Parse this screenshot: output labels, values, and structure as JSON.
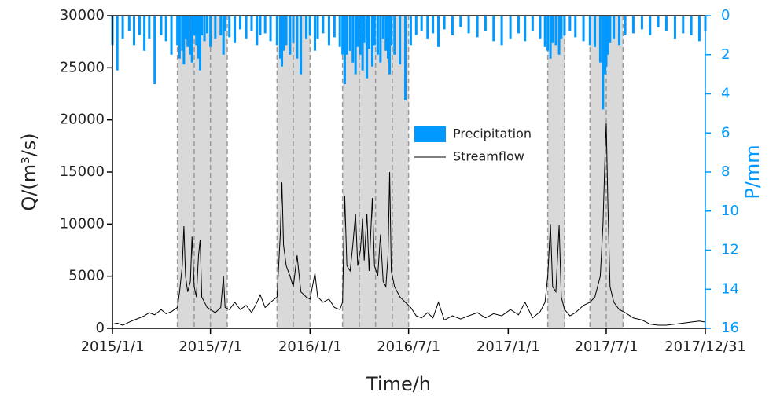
{
  "chart_data": {
    "type": "combo",
    "x_label": "Time/h",
    "y_label": "Q/(m³/s)",
    "y2_label": "P/mm",
    "x": [
      "2015/1/1",
      "2015/1/10",
      "2015/1/20",
      "2015/2/1",
      "2015/2/10",
      "2015/2/20",
      "2015/3/1",
      "2015/3/10",
      "2015/3/20",
      "2015/4/1",
      "2015/4/10",
      "2015/4/20",
      "2015/5/1",
      "2015/5/5",
      "2015/5/10",
      "2015/5/13",
      "2015/5/16",
      "2015/5/20",
      "2015/5/25",
      "2015/5/28",
      "2015/6/1",
      "2015/6/5",
      "2015/6/9",
      "2015/6/12",
      "2015/6/15",
      "2015/6/20",
      "2015/6/25",
      "2015/7/1",
      "2015/7/10",
      "2015/7/20",
      "2015/7/25",
      "2015/7/28",
      "2015/8/5",
      "2015/8/15",
      "2015/8/25",
      "2015/9/5",
      "2015/9/15",
      "2015/9/25",
      "2015/10/1",
      "2015/10/10",
      "2015/10/20",
      "2015/11/1",
      "2015/11/7",
      "2015/11/10",
      "2015/11/13",
      "2015/11/18",
      "2015/11/25",
      "2015/12/1",
      "2015/12/8",
      "2015/12/15",
      "2015/12/25",
      "2016/1/1",
      "2016/1/10",
      "2016/1/15",
      "2016/1/25",
      "2016/2/5",
      "2016/2/15",
      "2016/2/25",
      "2016/3/1",
      "2016/3/5",
      "2016/3/9",
      "2016/3/15",
      "2016/3/20",
      "2016/3/25",
      "2016/3/29",
      "2016/4/3",
      "2016/4/7",
      "2016/4/10",
      "2016/4/15",
      "2016/4/19",
      "2016/4/25",
      "2016/4/29",
      "2016/5/5",
      "2016/5/10",
      "2016/5/15",
      "2016/5/20",
      "2016/5/24",
      "2016/5/27",
      "2016/5/30",
      "2016/6/5",
      "2016/6/15",
      "2016/6/25",
      "2016/7/5",
      "2016/7/15",
      "2016/7/25",
      "2016/8/5",
      "2016/8/15",
      "2016/8/25",
      "2016/9/5",
      "2016/9/20",
      "2016/10/5",
      "2016/10/20",
      "2016/11/5",
      "2016/11/20",
      "2016/12/5",
      "2016/12/20",
      "2017/1/5",
      "2017/1/20",
      "2017/2/1",
      "2017/2/15",
      "2017/3/1",
      "2017/3/10",
      "2017/3/15",
      "2017/3/20",
      "2017/3/24",
      "2017/3/30",
      "2017/4/5",
      "2017/4/9",
      "2017/4/15",
      "2017/4/25",
      "2017/5/5",
      "2017/5/20",
      "2017/6/1",
      "2017/6/10",
      "2017/6/20",
      "2017/6/25",
      "2017/6/29",
      "2017/7/1",
      "2017/7/4",
      "2017/7/8",
      "2017/7/15",
      "2017/7/25",
      "2017/8/5",
      "2017/8/20",
      "2017/9/5",
      "2017/9/20",
      "2017/10/5",
      "2017/10/20",
      "2017/11/5",
      "2017/11/20",
      "2017/12/5",
      "2017/12/20",
      "2017/12/31"
    ],
    "series": [
      {
        "name": "Precipitation",
        "type": "bar",
        "axis": "y2",
        "color": "#0099ff",
        "values": [
          1.5,
          2.8,
          1.2,
          0.8,
          1.5,
          1.0,
          1.8,
          1.2,
          3.5,
          1.0,
          1.3,
          2.0,
          1.5,
          2.2,
          1.8,
          2.5,
          1.2,
          1.6,
          2.0,
          2.4,
          1.0,
          1.5,
          2.2,
          2.8,
          1.0,
          1.3,
          0.9,
          1.6,
          1.2,
          1.0,
          2.0,
          0.8,
          1.1,
          1.4,
          0.7,
          1.2,
          0.8,
          1.5,
          1.0,
          0.9,
          1.3,
          1.5,
          2.2,
          2.6,
          1.8,
          1.5,
          2.0,
          1.4,
          2.2,
          3.0,
          1.2,
          1.0,
          1.8,
          1.2,
          0.9,
          1.5,
          1.1,
          1.6,
          2.0,
          3.5,
          2.0,
          1.8,
          2.4,
          3.0,
          1.6,
          2.0,
          2.8,
          1.4,
          3.2,
          1.7,
          2.6,
          1.5,
          2.0,
          2.4,
          1.2,
          1.8,
          2.2,
          3.0,
          1.5,
          2.0,
          2.5,
          4.3,
          1.5,
          1.0,
          0.8,
          1.2,
          0.9,
          1.6,
          0.7,
          1.0,
          0.6,
          0.9,
          1.1,
          0.8,
          1.3,
          1.5,
          1.2,
          0.9,
          1.3,
          0.8,
          1.2,
          1.6,
          1.8,
          2.2,
          1.4,
          1.5,
          2.0,
          1.2,
          1.0,
          0.8,
          1.1,
          1.3,
          1.5,
          1.6,
          2.4,
          4.8,
          3.0,
          2.6,
          2.0,
          1.4,
          1.2,
          1.5,
          1.0,
          0.9,
          0.7,
          1.0,
          0.6,
          0.8,
          1.2,
          0.9,
          1.0,
          1.3,
          0.8
        ]
      },
      {
        "name": "Streamflow",
        "type": "line",
        "color": "#000000",
        "values": [
          400,
          500,
          300,
          600,
          800,
          1000,
          1200,
          1500,
          1300,
          1800,
          1400,
          1600,
          2000,
          3500,
          6000,
          9800,
          5000,
          3500,
          4500,
          8800,
          4000,
          3000,
          7000,
          8500,
          3000,
          2500,
          2000,
          1800,
          1500,
          2000,
          5000,
          2000,
          1800,
          2500,
          1800,
          2200,
          1500,
          2500,
          3200,
          2000,
          2500,
          3000,
          9000,
          14000,
          8000,
          6000,
          5000,
          4000,
          7000,
          3500,
          3000,
          2800,
          5300,
          3000,
          2500,
          2800,
          2000,
          1800,
          2500,
          12700,
          6000,
          5500,
          8000,
          11000,
          6000,
          7500,
          10500,
          6500,
          11000,
          5500,
          12500,
          6000,
          5000,
          9000,
          4500,
          4000,
          7000,
          15000,
          5500,
          4000,
          3000,
          2500,
          2000,
          1200,
          1000,
          1500,
          1000,
          2500,
          800,
          1200,
          900,
          1200,
          1500,
          1000,
          1400,
          1200,
          1800,
          1300,
          2500,
          1000,
          1600,
          2500,
          5000,
          10000,
          4000,
          3500,
          9900,
          3000,
          1800,
          1200,
          1500,
          2200,
          2500,
          3000,
          5000,
          10000,
          17000,
          19700,
          12000,
          4000,
          2500,
          1800,
          1500,
          1000,
          800,
          400,
          300,
          300,
          400,
          500,
          600,
          700,
          600
        ]
      }
    ],
    "xlim": [
      "2015/1/1",
      "2017/12/31"
    ],
    "xticks": [
      "2015/1/1",
      "2015/7/1",
      "2016/1/1",
      "2016/7/1",
      "2017/1/1",
      "2017/7/1",
      "2017/12/31"
    ],
    "ylim": [
      0,
      30000
    ],
    "yticks": [
      0,
      5000,
      10000,
      15000,
      20000,
      25000,
      30000
    ],
    "y2lim": [
      0,
      16
    ],
    "y2ticks": [
      0,
      2,
      4,
      6,
      8,
      10,
      12,
      14,
      16
    ],
    "y2_inverted": true,
    "shaded_periods": [
      [
        "2015/5/1",
        "2015/6/1",
        "2015/7/1",
        "2015/8/1"
      ],
      [
        "2015/11/1",
        "2015/12/1",
        "2016/1/1"
      ],
      [
        "2016/3/1",
        "2016/4/1",
        "2016/5/1",
        "2016/6/1",
        "2016/7/1"
      ],
      [
        "2017/3/15",
        "2017/4/15"
      ],
      [
        "2017/6/1",
        "2017/7/1",
        "2017/8/1"
      ]
    ],
    "shade_color": "#d9d9d9"
  }
}
